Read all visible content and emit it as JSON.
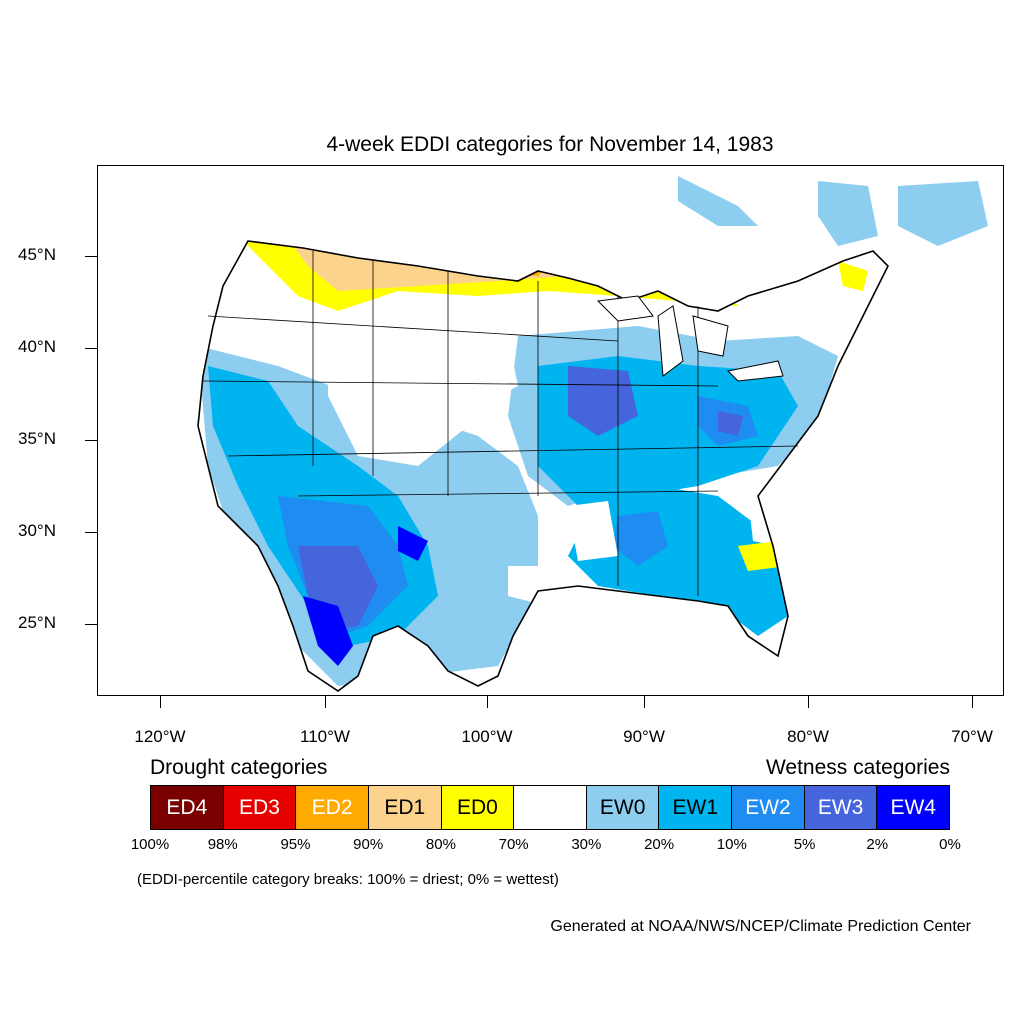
{
  "title": "4-week EDDI categories for November 14, 1983",
  "map": {
    "lat_labels": [
      "45°N",
      "40°N",
      "35°N",
      "30°N",
      "25°N"
    ],
    "lon_labels": [
      "120°W",
      "110°W",
      "100°W",
      "90°W",
      "80°W",
      "70°W"
    ]
  },
  "legend": {
    "drought_heading": "Drought categories",
    "wetness_heading": "Wetness categories",
    "categories": [
      {
        "label": "ED4",
        "color": "#7a0000",
        "text_color": "#ffffff"
      },
      {
        "label": "ED3",
        "color": "#e60000",
        "text_color": "#ffffff"
      },
      {
        "label": "ED2",
        "color": "#ffaa00",
        "text_color": "#ffffff"
      },
      {
        "label": "ED1",
        "color": "#fcd38c",
        "text_color": "#000000"
      },
      {
        "label": "ED0",
        "color": "#ffff00",
        "text_color": "#000000"
      },
      {
        "label": "",
        "color": "#ffffff",
        "text_color": "#000000"
      },
      {
        "label": "EW0",
        "color": "#8ccdf0",
        "text_color": "#000000"
      },
      {
        "label": "EW1",
        "color": "#00b4f0",
        "text_color": "#000000"
      },
      {
        "label": "EW2",
        "color": "#1e8cf0",
        "text_color": "#ffffff"
      },
      {
        "label": "EW3",
        "color": "#4664dc",
        "text_color": "#ffffff"
      },
      {
        "label": "EW4",
        "color": "#0000ff",
        "text_color": "#ffffff"
      }
    ],
    "breaks": [
      "100%",
      "98%",
      "95%",
      "90%",
      "80%",
      "70%",
      "30%",
      "20%",
      "10%",
      "5%",
      "2%",
      "0%"
    ]
  },
  "note": "(EDDI-percentile category breaks: 100% = driest; 0% = wettest)",
  "credit": "Generated at NOAA/NWS/NCEP/Climate Prediction Center"
}
